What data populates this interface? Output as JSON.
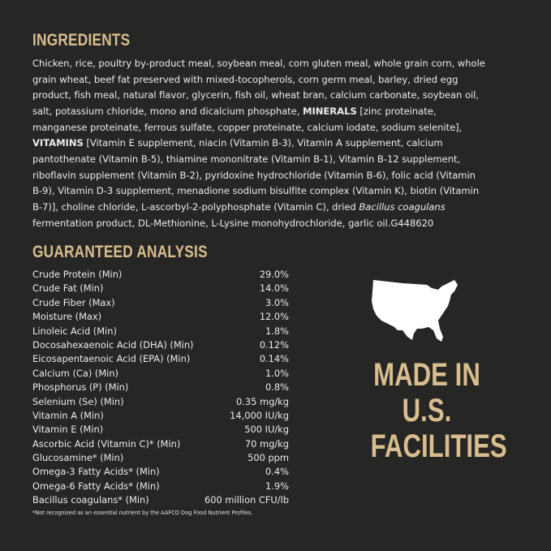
{
  "ingredients": {
    "heading": "INGREDIENTS",
    "lines": [
      [
        {
          "t": "Chicken, rice, poultry by-product meal, soybean meal, corn gluten meal, whole grain corn, whole"
        }
      ],
      [
        {
          "t": "grain wheat, beef fat preserved with mixed-tocopherols, corn germ meal, barley, dried egg"
        }
      ],
      [
        {
          "t": "product, fish meal, natural flavor, glycerin, fish oil, wheat bran, calcium carbonate, soybean oil,"
        }
      ],
      [
        {
          "t": "salt, potassium chloride, mono and dicalcium phosphate, "
        },
        {
          "t": "MINERALS",
          "s": "b"
        },
        {
          "t": " [zinc proteinate,"
        }
      ],
      [
        {
          "t": "manganese proteinate, ferrous sulfate, copper proteinate, calcium iodate, sodium selenite],"
        }
      ],
      [
        {
          "t": "VITAMINS",
          "s": "b"
        },
        {
          "t": " [Vitamin E supplement, niacin (Vitamin B-3), Vitamin A supplement, calcium"
        }
      ],
      [
        {
          "t": "pantothenate (Vitamin B-5), thiamine mononitrate (Vitamin B-1), Vitamin B-12 supplement,"
        }
      ],
      [
        {
          "t": "riboflavin supplement (Vitamin B-2), pyridoxine hydrochloride (Vitamin B-6), folic acid (Vitamin"
        }
      ],
      [
        {
          "t": "B-9), Vitamin D-3 supplement, menadione sodium bisulfite complex (Vitamin K), biotin (Vitamin"
        }
      ],
      [
        {
          "t": "B-7)], choline chloride, L-ascorbyl-2-polyphosphate (Vitamin C), dried "
        },
        {
          "t": "Bacillus coagulans",
          "s": "i"
        }
      ],
      [
        {
          "t": "fermentation product, DL-Methionine, L-Lysine monohydrochloride, garlic oil.G448620"
        }
      ]
    ]
  },
  "analysis": {
    "heading": "GUARANTEED ANALYSIS",
    "rows": [
      [
        "Crude Protein (Min)",
        "29.0%"
      ],
      [
        "Crude Fat (Min)",
        "14.0%"
      ],
      [
        "Crude Fiber (Max)",
        "3.0%"
      ],
      [
        "Moisture (Max)",
        "12.0%"
      ],
      [
        "Linoleic Acid (Min)",
        "1.8%"
      ],
      [
        "Docosahexaenoic Acid (DHA) (Min)",
        "0.12%"
      ],
      [
        "Eicosapentaenoic Acid (EPA) (Min)",
        "0.14%"
      ],
      [
        "Calcium (Ca) (Min)",
        "1.0%"
      ],
      [
        "Phosphorus (P) (Min)",
        "0.8%"
      ],
      [
        "Selenium (Se) (Min)",
        "0.35 mg/kg"
      ],
      [
        "Vitamin A (Min)",
        "14,000 IU/kg"
      ],
      [
        "Vitamin E (Min)",
        "500 IU/kg"
      ],
      [
        "Ascorbic Acid (Vitamin C)* (Min)",
        "70 mg/kg"
      ],
      [
        "Glucosamine* (Min)",
        "500 ppm"
      ],
      [
        "Omega-3 Fatty Acids* (Min)",
        "0.4%"
      ],
      [
        "Omega-6 Fatty Acids* (Min)",
        "1.9%"
      ],
      [
        "Bacillus coagulans* (Min)",
        "600 million CFU/lb"
      ]
    ],
    "footnote": "*Not recognized as an essential nutrient by the AAFCO Dog Food Nutrient Profiles."
  },
  "badge": {
    "icon": "usa-map-icon",
    "lines": [
      "MADE IN",
      "U.S.",
      "FACILITIES"
    ]
  },
  "colors": {
    "background": "#262625",
    "accent": "#d8bd8e",
    "text": "#ecebe8"
  }
}
